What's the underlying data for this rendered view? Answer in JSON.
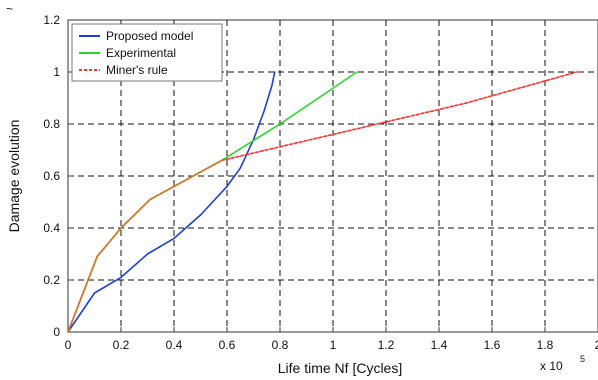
{
  "chart_data": {
    "type": "line",
    "xlabel": "Life time Nf [Cycles]",
    "ylabel": "Damage evolution",
    "x_multiplier_label": "x 10",
    "x_multiplier_exponent": "5",
    "xlim": [
      0,
      2
    ],
    "ylim": [
      0,
      1.2
    ],
    "x_ticks": [
      "0",
      "0.2",
      "0.4",
      "0.6",
      "0.8",
      "1",
      "1.2",
      "1.4",
      "1.6",
      "1.8",
      "2"
    ],
    "y_ticks": [
      "0",
      "0.2",
      "0.4",
      "0.6",
      "0.8",
      "1",
      "1.2"
    ],
    "grid": true,
    "legend_position": "top-left",
    "series": [
      {
        "name": "Proposed model",
        "color": "#1f3fd6",
        "line_style": "solid",
        "points": [
          [
            0,
            0
          ],
          [
            0.1,
            0.15
          ],
          [
            0.2,
            0.21
          ],
          [
            0.3,
            0.3
          ],
          [
            0.4,
            0.36
          ],
          [
            0.5,
            0.45
          ],
          [
            0.6,
            0.56
          ],
          [
            0.65,
            0.63
          ],
          [
            0.7,
            0.74
          ],
          [
            0.74,
            0.85
          ],
          [
            0.77,
            0.95
          ],
          [
            0.78,
            1.0
          ]
        ]
      },
      {
        "name": "Experimental",
        "color": "#2bd62b",
        "line_style": "solid",
        "points": [
          [
            0,
            0
          ],
          [
            0.11,
            0.29
          ],
          [
            0.2,
            0.4
          ],
          [
            0.31,
            0.51
          ],
          [
            0.4,
            0.56
          ],
          [
            0.58,
            0.66
          ],
          [
            0.8,
            0.8
          ],
          [
            1.09,
            1.0
          ]
        ]
      },
      {
        "name": "Miner's rule",
        "color": "#ff3030",
        "line_style": "dashed",
        "points": [
          [
            0,
            0
          ],
          [
            0.11,
            0.29
          ],
          [
            0.2,
            0.4
          ],
          [
            0.31,
            0.51
          ],
          [
            0.4,
            0.56
          ],
          [
            0.58,
            0.66
          ],
          [
            1.0,
            0.76
          ],
          [
            1.5,
            0.88
          ],
          [
            1.92,
            1.0
          ]
        ]
      },
      {
        "name": "",
        "color": "#d07a2a",
        "line_style": "solid",
        "points": [
          [
            0,
            0
          ],
          [
            0.11,
            0.29
          ],
          [
            0.2,
            0.4
          ],
          [
            0.31,
            0.51
          ],
          [
            0.4,
            0.56
          ],
          [
            0.58,
            0.66
          ]
        ]
      }
    ]
  }
}
